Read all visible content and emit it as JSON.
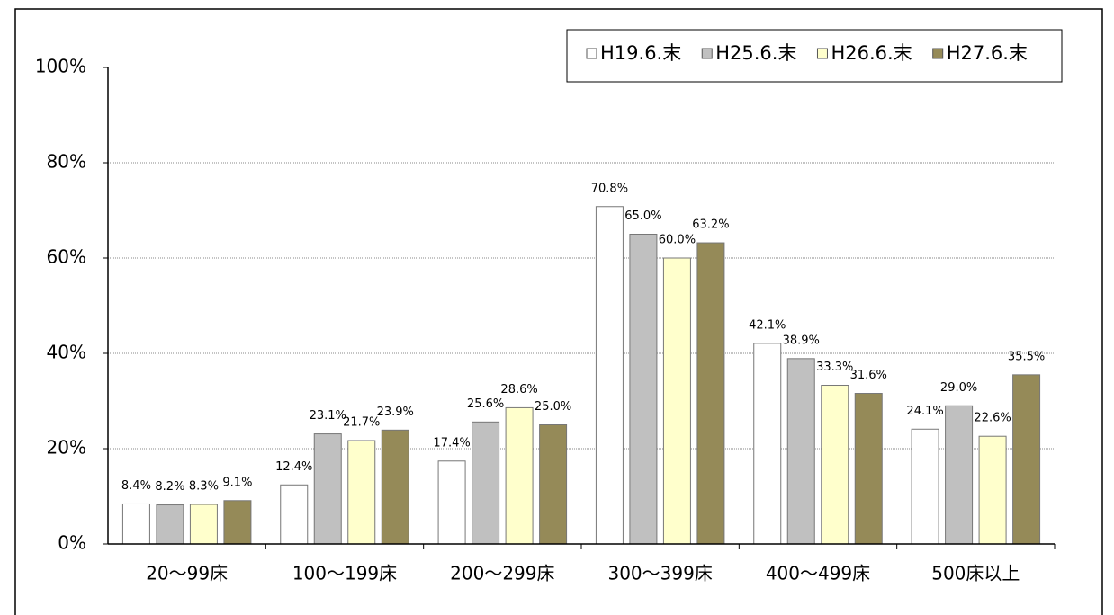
{
  "chart_data": {
    "type": "bar",
    "categories": [
      "20～99床",
      "100～199床",
      "200～299床",
      "300～399床",
      "400～499床",
      "500床以上"
    ],
    "series": [
      {
        "name": "H19.6.末",
        "color": "#ffffff",
        "values": [
          8.4,
          12.4,
          17.4,
          70.8,
          42.1,
          24.1
        ],
        "value_labels": [
          "8.4%",
          "12.4%",
          "17.4%",
          "70.8%",
          "42.1%",
          "24.1%"
        ]
      },
      {
        "name": "H25.6.末",
        "color": "#c0c0c0",
        "values": [
          8.2,
          23.1,
          25.6,
          65.0,
          38.9,
          29.0
        ],
        "value_labels": [
          "8.2%",
          "23.1%",
          "25.6%",
          "65.0%",
          "38.9%",
          "29.0%"
        ]
      },
      {
        "name": "H26.6.末",
        "color": "#ffffcc",
        "values": [
          8.3,
          21.7,
          28.6,
          60.0,
          33.3,
          22.6
        ],
        "value_labels": [
          "8.3%",
          "21.7%",
          "28.6%",
          "60.0%",
          "33.3%",
          "22.6%"
        ]
      },
      {
        "name": "H27.6.末",
        "color": "#958a58",
        "values": [
          9.1,
          23.9,
          25.0,
          63.2,
          31.6,
          35.5
        ],
        "value_labels": [
          "9.1%",
          "23.9%",
          "25.0%",
          "63.2%",
          "31.6%",
          "35.5%"
        ]
      }
    ],
    "ylim": [
      0,
      100
    ],
    "yticks": [
      {
        "value": 0,
        "label": "0%"
      },
      {
        "value": 20,
        "label": "20%"
      },
      {
        "value": 40,
        "label": "40%"
      },
      {
        "value": 60,
        "label": "60%"
      },
      {
        "value": 80,
        "label": "80%"
      },
      {
        "value": 100,
        "label": "100%"
      }
    ],
    "grid": true,
    "legend": "top-right"
  }
}
